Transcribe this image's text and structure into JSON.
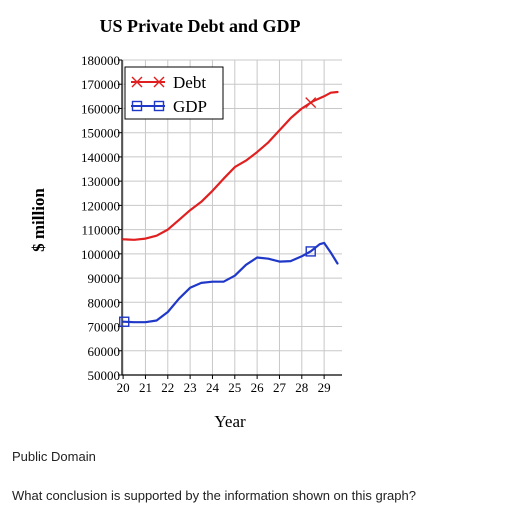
{
  "caption": "Public Domain",
  "question": "What conclusion is supported by the information shown on this graph?",
  "chart_data": {
    "type": "line",
    "title": "US Private Debt and GDP",
    "xlabel": "Year",
    "ylabel": "$ million",
    "x_ticks": [
      "20",
      "21",
      "22",
      "23",
      "24",
      "25",
      "26",
      "27",
      "28",
      "29"
    ],
    "y_ticks": [
      180000,
      170000,
      160000,
      150000,
      140000,
      130000,
      120000,
      110000,
      100000,
      90000,
      80000,
      70000,
      60000,
      50000
    ],
    "xlim": [
      19.95,
      29.8
    ],
    "ylim": [
      50000,
      180000
    ],
    "grid": true,
    "legend_position": "top-left",
    "series": [
      {
        "name": "Debt",
        "color": "#e02020",
        "marker": "cross",
        "marker_at": [
          28.4
        ],
        "x": [
          20,
          20.5,
          21,
          21.5,
          22,
          22.5,
          23,
          23.5,
          24,
          24.5,
          25,
          25.5,
          26,
          26.5,
          27,
          27.5,
          28,
          28.5,
          29,
          29.3,
          29.6
        ],
        "y": [
          106000,
          105800,
          106300,
          107500,
          110000,
          114000,
          118000,
          121500,
          126000,
          131000,
          135800,
          138500,
          142000,
          146000,
          151000,
          156000,
          160000,
          163000,
          165000,
          166500,
          166800
        ]
      },
      {
        "name": "GDP",
        "color": "#2038c8",
        "marker": "square",
        "marker_at": [
          20.05,
          28.4
        ],
        "x": [
          20,
          20.5,
          21,
          21.5,
          22,
          22.5,
          23,
          23.5,
          24,
          24.5,
          25,
          25.5,
          26,
          26.5,
          27,
          27.5,
          28,
          28.4,
          28.8,
          29,
          29.3,
          29.6
        ],
        "y": [
          72000,
          71800,
          71800,
          72500,
          76000,
          81500,
          86000,
          88000,
          88500,
          88500,
          91000,
          95500,
          98500,
          98000,
          96800,
          97000,
          99000,
          101000,
          104000,
          104500,
          100500,
          96000
        ]
      }
    ]
  }
}
